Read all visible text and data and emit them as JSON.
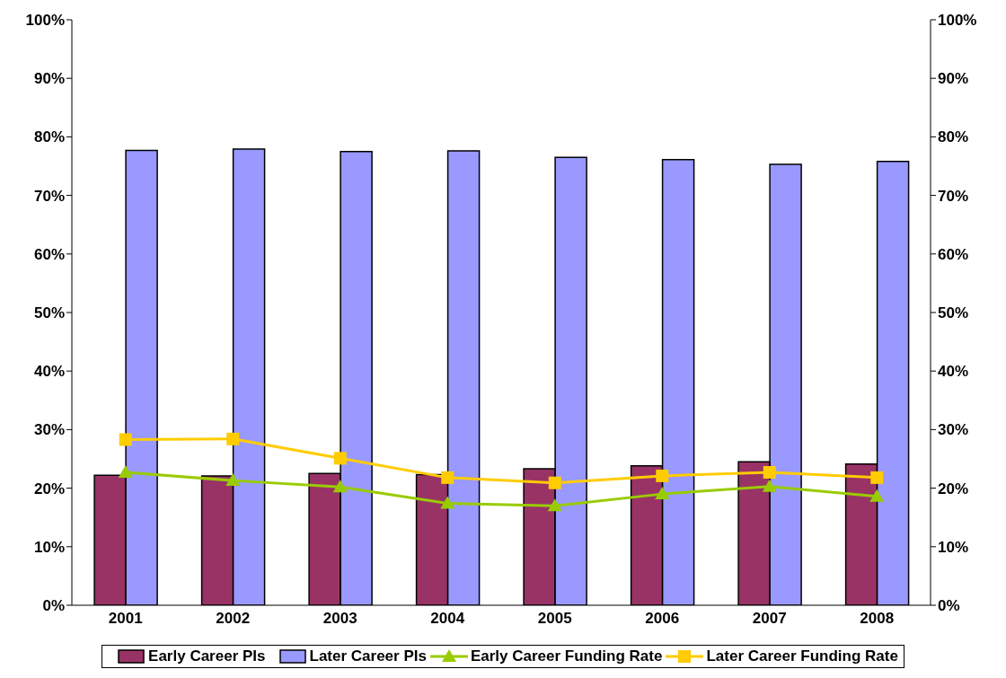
{
  "chart_data": {
    "type": "bar",
    "categories": [
      "2001",
      "2002",
      "2003",
      "2004",
      "2005",
      "2006",
      "2007",
      "2008"
    ],
    "series": [
      {
        "name": "Early Career PIs",
        "color": "#993366",
        "values": [
          22.2,
          22.1,
          22.5,
          22.3,
          23.3,
          23.8,
          24.5,
          24.1
        ]
      },
      {
        "name": "Later Career PIs",
        "color": "#9999ff",
        "values": [
          77.7,
          77.9,
          77.5,
          77.6,
          76.5,
          76.1,
          75.3,
          75.8
        ]
      },
      {
        "name": "Early Career Funding Rate",
        "type": "line",
        "marker": "triangle",
        "color": "#99cc00",
        "values": [
          22.7,
          21.3,
          20.2,
          17.4,
          17.0,
          19.0,
          20.3,
          18.6
        ]
      },
      {
        "name": "Later Career Funding Rate",
        "type": "line",
        "marker": "square",
        "color": "#ffcc00",
        "values": [
          28.3,
          28.4,
          25.1,
          21.8,
          20.9,
          22.1,
          22.7,
          21.8
        ]
      }
    ],
    "ylim": [
      0,
      100
    ],
    "yticks": [
      {
        "value": 0,
        "label": "0%"
      },
      {
        "value": 10,
        "label": "10%"
      },
      {
        "value": 20,
        "label": "20%"
      },
      {
        "value": 30,
        "label": "30%"
      },
      {
        "value": 40,
        "label": "40%"
      },
      {
        "value": 50,
        "label": "50%"
      },
      {
        "value": 60,
        "label": "60%"
      },
      {
        "value": 70,
        "label": "70%"
      },
      {
        "value": 80,
        "label": "80%"
      },
      {
        "value": 90,
        "label": "90%"
      },
      {
        "value": 100,
        "label": "100%"
      }
    ],
    "y2lim": [
      0,
      100
    ],
    "y2ticks": [
      {
        "value": 0,
        "label": "0%"
      },
      {
        "value": 10,
        "label": "10%"
      },
      {
        "value": 20,
        "label": "20%"
      },
      {
        "value": 30,
        "label": "30%"
      },
      {
        "value": 40,
        "label": "40%"
      },
      {
        "value": 50,
        "label": "50%"
      },
      {
        "value": 60,
        "label": "60%"
      },
      {
        "value": 70,
        "label": "70%"
      },
      {
        "value": 80,
        "label": "80%"
      },
      {
        "value": 90,
        "label": "90%"
      },
      {
        "value": 100,
        "label": "100%"
      }
    ],
    "grid": false,
    "legend": "bottom"
  }
}
